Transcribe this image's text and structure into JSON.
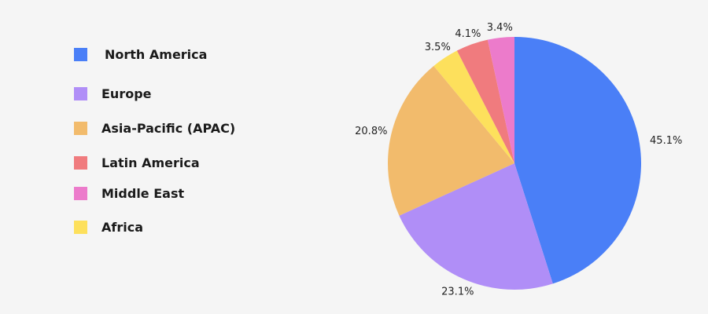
{
  "chart_data": {
    "type": "pie",
    "categories": [
      "North America",
      "Europe",
      "Asia-Pacific (APAC)",
      "Latin America",
      "Middle East",
      "Africa"
    ],
    "values": [
      45.1,
      23.1,
      20.8,
      4.1,
      3.4,
      3.5
    ],
    "value_labels": [
      "45.1%",
      "23.1%",
      "20.8%",
      "4.1%",
      "3.4%",
      "3.5%"
    ],
    "slice_order": [
      "North America",
      "Europe",
      "Asia-Pacific (APAC)",
      "Africa",
      "Latin America",
      "Middle East"
    ],
    "start_angle_deg": 0,
    "direction": "clockwise",
    "legend": {
      "placement": "left",
      "items": [
        {
          "label": "North America",
          "color": "#4a7ff7"
        },
        {
          "label": "Europe",
          "color": "#b08ef7"
        },
        {
          "label": "Asia-Pacific (APAC)",
          "color": "#f2bb6c"
        },
        {
          "label": "Latin America",
          "color": "#f07b7e"
        },
        {
          "label": "Middle East",
          "color": "#ec7bcb"
        },
        {
          "label": "Africa",
          "color": "#fde05c"
        }
      ]
    },
    "title": "",
    "grid": false
  }
}
